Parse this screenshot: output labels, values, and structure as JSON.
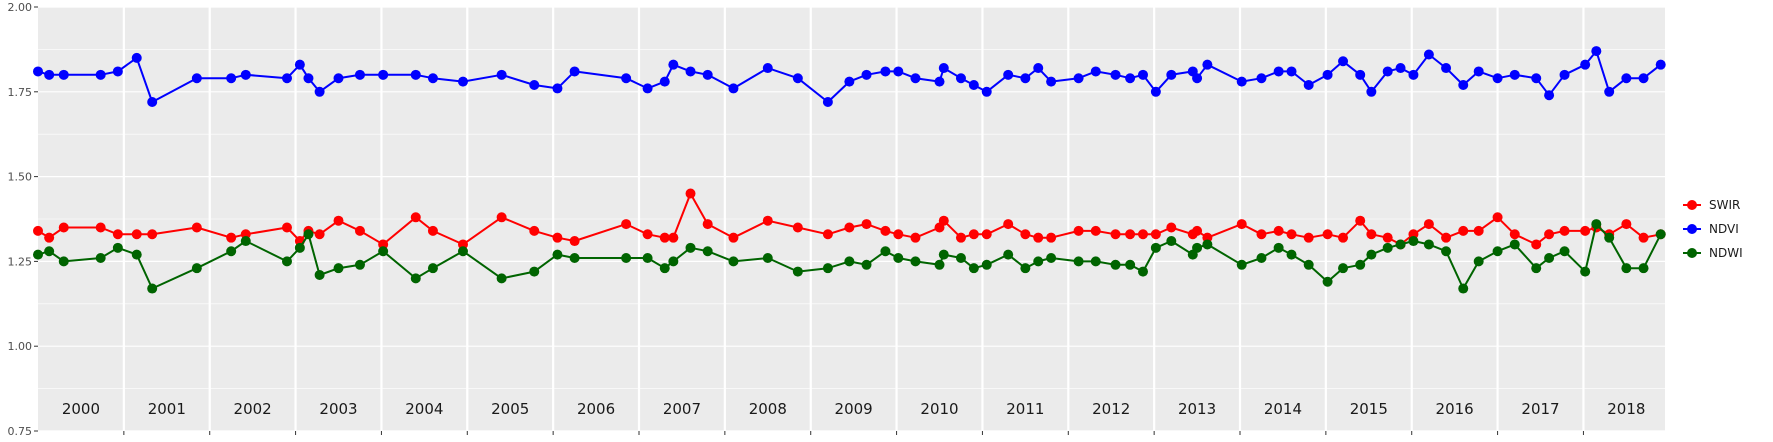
{
  "chart_data": {
    "type": "line",
    "title": "",
    "xlabel": "",
    "ylabel": "",
    "ylim": [
      0.75,
      2.0
    ],
    "y_ticks": [
      "0.75",
      "1.00",
      "1.25",
      "1.50",
      "1.75",
      "2.00"
    ],
    "years": [
      "2000",
      "2001",
      "2002",
      "2003",
      "2004",
      "2005",
      "2006",
      "2007",
      "2008",
      "2009",
      "2010",
      "2011",
      "2012",
      "2013",
      "2014",
      "2015",
      "2016",
      "2017",
      "2018"
    ],
    "x_range": [
      2000.0,
      2018.95
    ],
    "grid": true,
    "background": "#ebebeb",
    "legend_position": "right",
    "series": [
      {
        "name": "SWIR",
        "color": "#ff0000",
        "x": [
          2000.0,
          2000.13,
          2000.3,
          2000.73,
          2000.93,
          2001.15,
          2001.33,
          2001.85,
          2002.25,
          2002.42,
          2002.9,
          2003.05,
          2003.15,
          2003.28,
          2003.5,
          2003.75,
          2004.02,
          2004.4,
          2004.6,
          2004.95,
          2005.4,
          2005.78,
          2006.05,
          2006.25,
          2006.85,
          2007.1,
          2007.3,
          2007.4,
          2007.6,
          2007.8,
          2008.1,
          2008.5,
          2008.85,
          2009.2,
          2009.45,
          2009.65,
          2009.87,
          2010.02,
          2010.22,
          2010.5,
          2010.55,
          2010.75,
          2010.9,
          2011.05,
          2011.3,
          2011.5,
          2011.65,
          2011.8,
          2012.12,
          2012.32,
          2012.55,
          2012.72,
          2012.87,
          2013.02,
          2013.2,
          2013.45,
          2013.5,
          2013.62,
          2014.02,
          2014.25,
          2014.45,
          2014.6,
          2014.8,
          2015.02,
          2015.2,
          2015.4,
          2015.53,
          2015.72,
          2015.87,
          2016.02,
          2016.2,
          2016.4,
          2016.6,
          2016.78,
          2017.0,
          2017.2,
          2017.45,
          2017.6,
          2017.78,
          2018.02,
          2018.15,
          2018.3,
          2018.5,
          2018.7,
          2018.9
        ],
        "values": [
          1.34,
          1.32,
          1.35,
          1.35,
          1.33,
          1.33,
          1.33,
          1.35,
          1.32,
          1.33,
          1.35,
          1.31,
          1.34,
          1.33,
          1.37,
          1.34,
          1.3,
          1.38,
          1.34,
          1.3,
          1.38,
          1.34,
          1.32,
          1.31,
          1.36,
          1.33,
          1.32,
          1.32,
          1.45,
          1.36,
          1.32,
          1.37,
          1.35,
          1.33,
          1.35,
          1.36,
          1.34,
          1.33,
          1.32,
          1.35,
          1.37,
          1.32,
          1.33,
          1.33,
          1.36,
          1.33,
          1.32,
          1.32,
          1.34,
          1.34,
          1.33,
          1.33,
          1.33,
          1.33,
          1.35,
          1.33,
          1.34,
          1.32,
          1.36,
          1.33,
          1.34,
          1.33,
          1.32,
          1.33,
          1.32,
          1.37,
          1.33,
          1.32,
          1.3,
          1.33,
          1.36,
          1.32,
          1.34,
          1.34,
          1.38,
          1.33,
          1.3,
          1.33,
          1.34,
          1.34,
          1.35,
          1.33,
          1.36,
          1.32,
          1.33
        ]
      },
      {
        "name": "NDVI",
        "color": "#0000ff",
        "x": [
          2000.0,
          2000.13,
          2000.3,
          2000.73,
          2000.93,
          2001.15,
          2001.33,
          2001.85,
          2002.25,
          2002.42,
          2002.9,
          2003.05,
          2003.15,
          2003.28,
          2003.5,
          2003.75,
          2004.02,
          2004.4,
          2004.6,
          2004.95,
          2005.4,
          2005.78,
          2006.05,
          2006.25,
          2006.85,
          2007.1,
          2007.3,
          2007.4,
          2007.6,
          2007.8,
          2008.1,
          2008.5,
          2008.85,
          2009.2,
          2009.45,
          2009.65,
          2009.87,
          2010.02,
          2010.22,
          2010.5,
          2010.55,
          2010.75,
          2010.9,
          2011.05,
          2011.3,
          2011.5,
          2011.65,
          2011.8,
          2012.12,
          2012.32,
          2012.55,
          2012.72,
          2012.87,
          2013.02,
          2013.2,
          2013.45,
          2013.5,
          2013.62,
          2014.02,
          2014.25,
          2014.45,
          2014.6,
          2014.8,
          2015.02,
          2015.2,
          2015.4,
          2015.53,
          2015.72,
          2015.87,
          2016.02,
          2016.2,
          2016.4,
          2016.6,
          2016.78,
          2017.0,
          2017.2,
          2017.45,
          2017.6,
          2017.78,
          2018.02,
          2018.15,
          2018.3,
          2018.5,
          2018.7,
          2018.9
        ],
        "values": [
          1.81,
          1.8,
          1.8,
          1.8,
          1.81,
          1.85,
          1.72,
          1.79,
          1.79,
          1.8,
          1.79,
          1.83,
          1.79,
          1.75,
          1.79,
          1.8,
          1.8,
          1.8,
          1.79,
          1.78,
          1.8,
          1.77,
          1.76,
          1.81,
          1.79,
          1.76,
          1.78,
          1.83,
          1.81,
          1.8,
          1.76,
          1.82,
          1.79,
          1.72,
          1.78,
          1.8,
          1.81,
          1.81,
          1.79,
          1.78,
          1.82,
          1.79,
          1.77,
          1.75,
          1.8,
          1.79,
          1.82,
          1.78,
          1.79,
          1.81,
          1.8,
          1.79,
          1.8,
          1.75,
          1.8,
          1.81,
          1.79,
          1.83,
          1.78,
          1.79,
          1.81,
          1.81,
          1.77,
          1.8,
          1.84,
          1.8,
          1.75,
          1.81,
          1.82,
          1.8,
          1.86,
          1.82,
          1.77,
          1.81,
          1.79,
          1.8,
          1.79,
          1.74,
          1.8,
          1.83,
          1.87,
          1.75,
          1.79,
          1.79,
          1.83
        ]
      },
      {
        "name": "NDWI",
        "color": "#006400",
        "x": [
          2000.0,
          2000.13,
          2000.3,
          2000.73,
          2000.93,
          2001.15,
          2001.33,
          2001.85,
          2002.25,
          2002.42,
          2002.9,
          2003.05,
          2003.15,
          2003.28,
          2003.5,
          2003.75,
          2004.02,
          2004.4,
          2004.6,
          2004.95,
          2005.4,
          2005.78,
          2006.05,
          2006.25,
          2006.85,
          2007.1,
          2007.3,
          2007.4,
          2007.6,
          2007.8,
          2008.1,
          2008.5,
          2008.85,
          2009.2,
          2009.45,
          2009.65,
          2009.87,
          2010.02,
          2010.22,
          2010.5,
          2010.55,
          2010.75,
          2010.9,
          2011.05,
          2011.3,
          2011.5,
          2011.65,
          2011.8,
          2012.12,
          2012.32,
          2012.55,
          2012.72,
          2012.87,
          2013.02,
          2013.2,
          2013.45,
          2013.5,
          2013.62,
          2014.02,
          2014.25,
          2014.45,
          2014.6,
          2014.8,
          2015.02,
          2015.2,
          2015.4,
          2015.53,
          2015.72,
          2015.87,
          2016.02,
          2016.2,
          2016.4,
          2016.6,
          2016.78,
          2017.0,
          2017.2,
          2017.45,
          2017.6,
          2017.78,
          2018.02,
          2018.15,
          2018.3,
          2018.5,
          2018.7,
          2018.9
        ],
        "values": [
          1.27,
          1.28,
          1.25,
          1.26,
          1.29,
          1.27,
          1.17,
          1.23,
          1.28,
          1.31,
          1.25,
          1.29,
          1.33,
          1.21,
          1.23,
          1.24,
          1.28,
          1.2,
          1.23,
          1.28,
          1.2,
          1.22,
          1.27,
          1.26,
          1.26,
          1.26,
          1.23,
          1.25,
          1.29,
          1.28,
          1.25,
          1.26,
          1.22,
          1.23,
          1.25,
          1.24,
          1.28,
          1.26,
          1.25,
          1.24,
          1.27,
          1.26,
          1.23,
          1.24,
          1.27,
          1.23,
          1.25,
          1.26,
          1.25,
          1.25,
          1.24,
          1.24,
          1.22,
          1.29,
          1.31,
          1.27,
          1.29,
          1.3,
          1.24,
          1.26,
          1.29,
          1.27,
          1.24,
          1.19,
          1.23,
          1.24,
          1.27,
          1.29,
          1.3,
          1.31,
          1.3,
          1.28,
          1.17,
          1.25,
          1.28,
          1.3,
          1.23,
          1.26,
          1.28,
          1.22,
          1.36,
          1.32,
          1.23,
          1.23,
          1.33
        ]
      }
    ]
  }
}
